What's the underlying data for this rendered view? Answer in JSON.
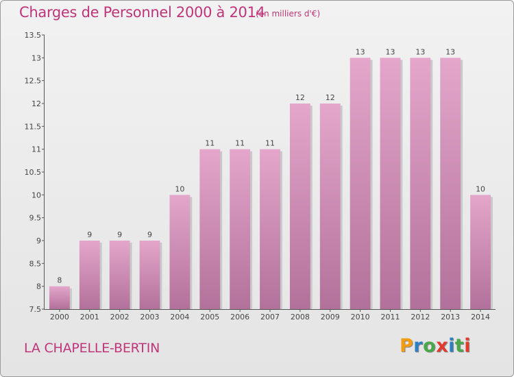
{
  "header": {
    "title": "Charges de Personnel 2000 à 2014",
    "subtitle": "(en milliers d'€)"
  },
  "footer": {
    "place": "LA CHAPELLE-BERTIN",
    "brand": "Proxiti"
  },
  "colors": {
    "accent": "#c0357a",
    "bar_top": "#e4a6cb",
    "bar_bottom": "#b2719a",
    "logo": [
      "#f39c12",
      "#2b7fc4",
      "#4aa84b",
      "#e23b2e",
      "#2b7fc4",
      "#4aa84b",
      "#e23b2e"
    ]
  },
  "chart_data": {
    "type": "bar",
    "title": "Charges de Personnel 2000 à 2014",
    "subtitle": "(en milliers d'€)",
    "categories": [
      "2000",
      "2001",
      "2002",
      "2003",
      "2004",
      "2005",
      "2006",
      "2007",
      "2008",
      "2009",
      "2010",
      "2011",
      "2012",
      "2013",
      "2014"
    ],
    "values": [
      8,
      9,
      9,
      9,
      10,
      11,
      11,
      11,
      12,
      12,
      13,
      13,
      13,
      13,
      10
    ],
    "ylim": [
      7.5,
      13.5
    ],
    "yticks": [
      7.5,
      8,
      8.5,
      9,
      9.5,
      10,
      10.5,
      11,
      11.5,
      12,
      12.5,
      13,
      13.5
    ],
    "ytick_labels": [
      "7.5",
      "8",
      "8.5",
      "9",
      "9.5",
      "10",
      "10.5",
      "11",
      "11.5",
      "12",
      "12.5",
      "13",
      "13.5"
    ],
    "grid": false,
    "legend": "none"
  }
}
